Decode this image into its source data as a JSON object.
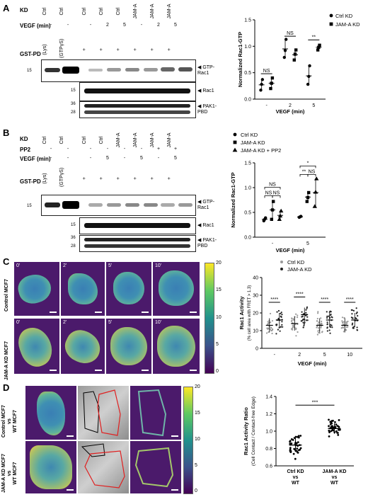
{
  "panels": {
    "A": {
      "letter": "A",
      "rows": {
        "kd": "KD",
        "vegf": "VEGF (min)",
        "gstpd": "GST-PD"
      },
      "lane_kd": [
        "Ctrl",
        "Ctrl",
        "Ctrl",
        "Ctrl",
        "Ctrl",
        "JAM-A",
        "JAM-A",
        "JAM-A"
      ],
      "lane_vegf": [
        "-",
        "-",
        "-",
        "2",
        "5",
        "-",
        "2",
        "5"
      ],
      "lane_gst": [
        "(Lys)",
        "(GTPγS)",
        "+",
        "+",
        "+",
        "+",
        "+",
        "+"
      ],
      "blots": {
        "gtp": "GTP-\nRac1",
        "rac1": "Rac1",
        "pak": "PAK1-\nPBD"
      },
      "mw": {
        "m15a": "15",
        "m15b": "15",
        "m36": "36",
        "m28": "28"
      }
    },
    "B": {
      "letter": "B",
      "rows": {
        "kd": "KD",
        "pp2": "PP2",
        "vegf": "VEGF (min)",
        "gstpd": "GST-PD"
      },
      "lane_kd": [
        "Ctrl",
        "Ctrl",
        "Ctrl",
        "Ctrl",
        "JAM-A",
        "JAM-A",
        "JAM-A",
        "JAM-A"
      ],
      "lane_pp2": [
        "-",
        "-",
        "-",
        "-",
        "-",
        "-",
        "+",
        "+"
      ],
      "lane_vegf": [
        "-",
        "-",
        "-",
        "5",
        "-",
        "5",
        "-",
        "5"
      ],
      "lane_gst": [
        "(Lys)",
        "(GTPγS)",
        "+",
        "+",
        "+",
        "+",
        "+",
        "+"
      ],
      "blots": {
        "gtp": "GTP-\nRac1",
        "rac1": "Rac1",
        "pak": "PAK1-\nPBD"
      },
      "mw": {
        "m15a": "15",
        "m15b": "15",
        "m36": "36",
        "m28": "28"
      }
    },
    "C": {
      "letter": "C",
      "row_labels": [
        "Control MCF7",
        "JAM-A KD MCF7"
      ],
      "timepoints": [
        "0'",
        "2'",
        "5'",
        "10'"
      ],
      "colorbar_ticks": [
        "20",
        "15",
        "10",
        "5",
        "0"
      ]
    },
    "D": {
      "letter": "D",
      "row_labels": [
        "Control MCF7\nvs\nWT MCF7",
        "JAM-A KD MCF7\nvs\nWT MCF7"
      ],
      "colorbar_ticks": [
        "20",
        "15",
        "10",
        "5",
        "0"
      ]
    }
  },
  "chart_data": [
    {
      "type": "scatter",
      "panel": "A",
      "ylabel": "Normalized Rac1-GTP",
      "xlabel": "VEGF (min)",
      "categories": [
        "-",
        "2",
        "5"
      ],
      "ylim": [
        0,
        1.5
      ],
      "yticks": [
        "0.0",
        "0.5",
        "1.0",
        "1.5"
      ],
      "series": [
        {
          "name": "Ctrl KD",
          "marker": "circle",
          "mean": [
            0.27,
            0.95,
            0.44
          ],
          "sd": [
            0.12,
            0.16,
            0.18
          ],
          "points": [
            [
              0.17,
              0.28,
              0.37
            ],
            [
              0.79,
              0.92,
              1.13
            ],
            [
              0.28,
              0.43,
              0.63
            ]
          ]
        },
        {
          "name": "JAM-A KD",
          "marker": "square",
          "mean": [
            0.3,
            0.84,
            0.98
          ],
          "sd": [
            0.1,
            0.1,
            0.06
          ],
          "points": [
            [
              0.2,
              0.3,
              0.4
            ],
            [
              0.74,
              0.85,
              0.93
            ],
            [
              0.93,
              0.98,
              1.02
            ]
          ]
        }
      ],
      "significance": [
        "NS",
        "NS",
        "**"
      ]
    },
    {
      "type": "scatter",
      "panel": "B",
      "ylabel": "Normalized Rac1-GTP",
      "xlabel": "VEGF (min)",
      "categories": [
        "-",
        "5"
      ],
      "ylim": [
        0,
        1.5
      ],
      "yticks": [
        "0.0",
        "0.5",
        "1.0",
        "1.5"
      ],
      "series": [
        {
          "name": "Ctrl KD",
          "marker": "circle",
          "mean": [
            0.36,
            0.41
          ],
          "sd": [
            0.03,
            0.01
          ],
          "points": [
            [
              0.33,
              0.36,
              0.39
            ],
            [
              0.4,
              0.41,
              0.42
            ]
          ]
        },
        {
          "name": "JAM-A KD",
          "marker": "square",
          "mean": [
            0.55,
            0.81
          ],
          "sd": [
            0.2,
            0.1
          ],
          "points": [
            [
              0.36,
              0.55,
              0.72
            ],
            [
              0.72,
              0.8,
              0.9
            ]
          ]
        },
        {
          "name": "JAM-A KD + PP2",
          "marker": "triangle",
          "mean": [
            0.44,
            0.9
          ],
          "sd": [
            0.1,
            0.28
          ],
          "points": [
            [
              0.36,
              0.43,
              0.53
            ],
            [
              0.62,
              0.91,
              1.18
            ]
          ]
        }
      ],
      "significance": [
        "NS",
        "NS",
        "NS",
        "**",
        "NS",
        "*"
      ]
    },
    {
      "type": "scatter",
      "panel": "C",
      "ylabel": "Rac1 Activity",
      "ylabel2": "(% cell area with FRET > 1.3)",
      "xlabel": "VEGF (min)",
      "categories": [
        "-",
        "2",
        "5",
        "10"
      ],
      "ylim": [
        0,
        40
      ],
      "yticks": [
        "0",
        "10",
        "20",
        "30",
        "40"
      ],
      "series": [
        {
          "name": "Ctrl KD",
          "marker": "dot-grey",
          "mean": [
            13,
            14,
            13,
            13
          ],
          "sd": [
            4,
            4,
            4,
            4
          ]
        },
        {
          "name": "JAM-A KD",
          "marker": "dot-dark",
          "mean": [
            16,
            19,
            16,
            16
          ],
          "sd": [
            4,
            4,
            4,
            4
          ]
        }
      ],
      "significance": [
        "****",
        "****",
        "****",
        "****"
      ]
    },
    {
      "type": "scatter",
      "panel": "D",
      "ylabel": "Rac1 Activity Ratio",
      "ylabel2": "(Cell Contact / Contact-free Edge)",
      "categories": [
        "Ctrl KD\nvs\nWT",
        "JAM-A KD\nvs\nWT"
      ],
      "ylim": [
        0.6,
        1.4
      ],
      "yticks": [
        "0.6",
        "0.8",
        "1.0",
        "1.2",
        "1.4"
      ],
      "series": [
        {
          "name": "Ctrl KD vs WT",
          "mean": 0.84,
          "sd": 0.08
        },
        {
          "name": "JAM-A KD vs WT",
          "mean": 1.03,
          "sd": 0.06
        }
      ],
      "significance": [
        "***"
      ]
    }
  ]
}
